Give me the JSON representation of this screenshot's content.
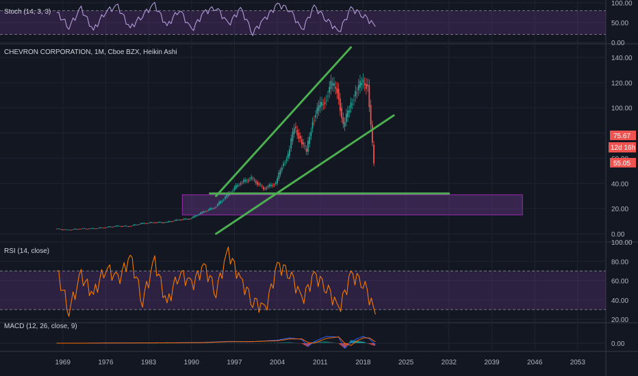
{
  "colors": {
    "background": "#131722",
    "grid": "#1f2433",
    "separator": "#363a45",
    "up": "#26a69a",
    "down": "#ef5350",
    "trendline": "#4caf50",
    "zone": "#7b3fa0",
    "stoch": "#b39ddb",
    "rsi": "#f57c00",
    "macd": "#2962ff",
    "signal": "#ff6d00",
    "hist_pos": "#26a69a",
    "hist_neg": "#ef5350"
  },
  "chart_data": [
    {
      "type": "line",
      "panel": "stoch",
      "title": "Stoch (14, 3, 3)",
      "y_ticks": [
        "100.00",
        "50.00",
        "0.00"
      ],
      "ylim": [
        0,
        100
      ],
      "bands": [
        20,
        80
      ],
      "x": [
        1968,
        1970,
        1972,
        1974,
        1976,
        1978,
        1980,
        1982,
        1984,
        1986,
        1988,
        1990,
        1992,
        1994,
        1996,
        1998,
        2000,
        2002,
        2004,
        2006,
        2008,
        2010,
        2012,
        2014,
        2016,
        2018,
        2020
      ],
      "values": [
        75,
        40,
        85,
        30,
        80,
        90,
        35,
        70,
        95,
        40,
        85,
        30,
        75,
        90,
        45,
        85,
        25,
        60,
        95,
        85,
        30,
        90,
        60,
        25,
        85,
        70,
        40
      ]
    },
    {
      "type": "candlestick",
      "panel": "main",
      "title": "CHEVRON CORPORATION, 1M, Cboe BZX, Heikin Ashi",
      "y_ticks": [
        "140.00",
        "120.00",
        "100.00",
        "80.00",
        "60.00",
        "40.00",
        "20.00",
        "0.00"
      ],
      "ylim": [
        -2,
        145
      ],
      "x_ticks": [
        "1969",
        "1976",
        "1983",
        "1990",
        "1997",
        "2004",
        "2011",
        "2018",
        "2025",
        "2032",
        "2039",
        "2046",
        "2053"
      ],
      "x": [
        1968,
        1970,
        1972,
        1974,
        1976,
        1978,
        1980,
        1982,
        1984,
        1986,
        1988,
        1990,
        1992,
        1994,
        1996,
        1998,
        2000,
        2002,
        2004,
        2005,
        2006,
        2007,
        2008,
        2009,
        2010,
        2011,
        2012,
        2013,
        2014,
        2015,
        2016,
        2017,
        2018,
        2019,
        2020
      ],
      "close": [
        4,
        3,
        4,
        4,
        5,
        6,
        6,
        8,
        9,
        9,
        11,
        12,
        17,
        21,
        30,
        40,
        44,
        36,
        40,
        54,
        62,
        85,
        75,
        65,
        90,
        100,
        106,
        118,
        115,
        85,
        100,
        112,
        120,
        118,
        55
      ],
      "price_tags": [
        "75.67",
        "12d 16h",
        "55.05"
      ],
      "annotations": {
        "channel_upper": [
          [
            1994.0,
            30
          ],
          [
            2016.0,
            148
          ]
        ],
        "channel_lower": [
          [
            1994.0,
            0
          ],
          [
            2023.0,
            94
          ]
        ],
        "support_line": [
          [
            1993.0,
            32
          ],
          [
            2032.0,
            32
          ]
        ],
        "zone": {
          "x": [
            1988.5,
            2044.0
          ],
          "y": [
            15,
            31
          ]
        }
      }
    },
    {
      "type": "line",
      "panel": "rsi",
      "title": "RSI (14, close)",
      "y_ticks": [
        "100.00",
        "80.00",
        "60.00",
        "40.00",
        "20.00"
      ],
      "ylim": [
        20,
        100
      ],
      "bands": [
        30,
        70
      ],
      "x": [
        1968,
        1970,
        1972,
        1974,
        1976,
        1978,
        1980,
        1982,
        1984,
        1986,
        1988,
        1990,
        1992,
        1994,
        1996,
        1998,
        2000,
        2002,
        2004,
        2006,
        2008,
        2010,
        2012,
        2014,
        2016,
        2018,
        2020
      ],
      "values": [
        70,
        30,
        65,
        45,
        75,
        60,
        85,
        40,
        80,
        35,
        70,
        55,
        75,
        50,
        90,
        60,
        40,
        30,
        75,
        70,
        40,
        65,
        55,
        30,
        65,
        60,
        25
      ]
    },
    {
      "type": "line",
      "panel": "macd",
      "title": "MACD (12, 26, close, 9)",
      "y_ticks": [
        "0.00"
      ],
      "ylim": [
        -6,
        8
      ],
      "x": [
        1968,
        1972,
        1976,
        1980,
        1984,
        1988,
        1992,
        1996,
        2000,
        2004,
        2006,
        2008,
        2009,
        2010,
        2012,
        2014,
        2015,
        2016,
        2017,
        2018,
        2019,
        2020
      ],
      "series": [
        {
          "role": "macd",
          "values": [
            0,
            0,
            0.1,
            0.2,
            0.2,
            0.3,
            0.5,
            1.2,
            1.0,
            2.0,
            3.5,
            2.5,
            -2.0,
            1.0,
            4.5,
            4.0,
            -3.5,
            0.5,
            3.0,
            4.5,
            3.0,
            -1.0
          ]
        },
        {
          "role": "signal",
          "values": [
            0,
            0,
            0.1,
            0.15,
            0.2,
            0.25,
            0.4,
            1.0,
            1.1,
            1.6,
            2.8,
            2.8,
            0.5,
            0.0,
            3.2,
            4.2,
            0.0,
            -1.5,
            1.5,
            3.5,
            3.5,
            1.0
          ]
        }
      ]
    }
  ]
}
